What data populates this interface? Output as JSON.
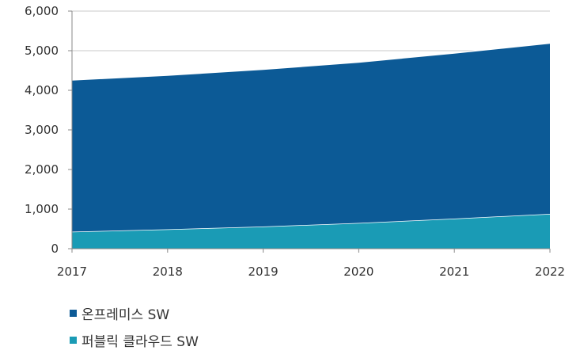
{
  "chart_data": {
    "type": "area",
    "stacked": true,
    "x": [
      "2017",
      "2018",
      "2019",
      "2020",
      "2021",
      "2022"
    ],
    "series": [
      {
        "name": "퍼블릭 클라우드 SW",
        "values": [
          430,
          490,
          560,
          650,
          760,
          880
        ],
        "color": "#1a9bb5"
      },
      {
        "name": "온프레미스 SW",
        "values": [
          3830,
          3890,
          3970,
          4060,
          4180,
          4310
        ],
        "color": "#0c5a96"
      }
    ],
    "y_ticks": [
      "0",
      "1,000",
      "2,000",
      "3,000",
      "4,000",
      "5,000",
      "6,000"
    ],
    "ylim": [
      0,
      6000
    ],
    "grid": true,
    "title": "",
    "xlabel": "",
    "ylabel": ""
  },
  "legend": [
    {
      "label": "온프레미스 SW",
      "color": "#0c5a96"
    },
    {
      "label": "퍼블릭 클라우드 SW",
      "color": "#1a9bb5"
    }
  ]
}
